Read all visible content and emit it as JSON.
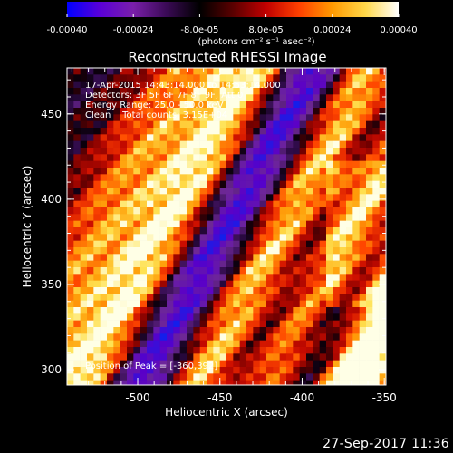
{
  "colorbar": {
    "tick_labels": [
      "-0.00040",
      "-0.00024",
      "-8.0e-05",
      "8.0e-05",
      "0.00024",
      "0.00040"
    ],
    "ticks": [
      -0.0004,
      -0.00024,
      -8e-05,
      8e-05,
      0.00024,
      0.0004
    ],
    "range": [
      -0.0004,
      0.0004
    ],
    "units_label": "(photons cm⁻² s⁻¹ asec⁻²)",
    "colors": [
      "#0000ff",
      "#5a00d8",
      "#7a1faa",
      "#3a0a55",
      "#000000",
      "#5a0000",
      "#c00000",
      "#ff4000",
      "#ff9a00",
      "#ffd84a",
      "#ffffff"
    ]
  },
  "chart_data": {
    "type": "heatmap",
    "title": "Reconstructed RHESSI Image",
    "xlabel": "Heliocentric X (arcsec)",
    "ylabel": "Heliocentric Y (arcsec)",
    "xlim": [
      -543,
      -349
    ],
    "ylim": [
      291,
      477
    ],
    "x_ticks": [
      -500,
      -450,
      -400,
      -350
    ],
    "y_ticks": [
      300,
      350,
      400,
      450
    ],
    "x_tick_labels": [
      "-500",
      "-450",
      "-400",
      "-350"
    ],
    "y_tick_labels": [
      "300",
      "350",
      "400",
      "450"
    ],
    "annotations": [
      "17-Apr-2015 14:43:14.000 to 14:53:14.000",
      "Detectors: 3F 5F 6F 7F 8F 9F, Att 0",
      "Energy Range: 25.0 - 50.0 keV",
      "Clean    Total counts: 3.15E+04"
    ],
    "peak_label": "Position of Peak = [-360,392]",
    "peak_position": [
      -360,
      392
    ]
  },
  "timestamp": "27-Sep-2017 11:36"
}
